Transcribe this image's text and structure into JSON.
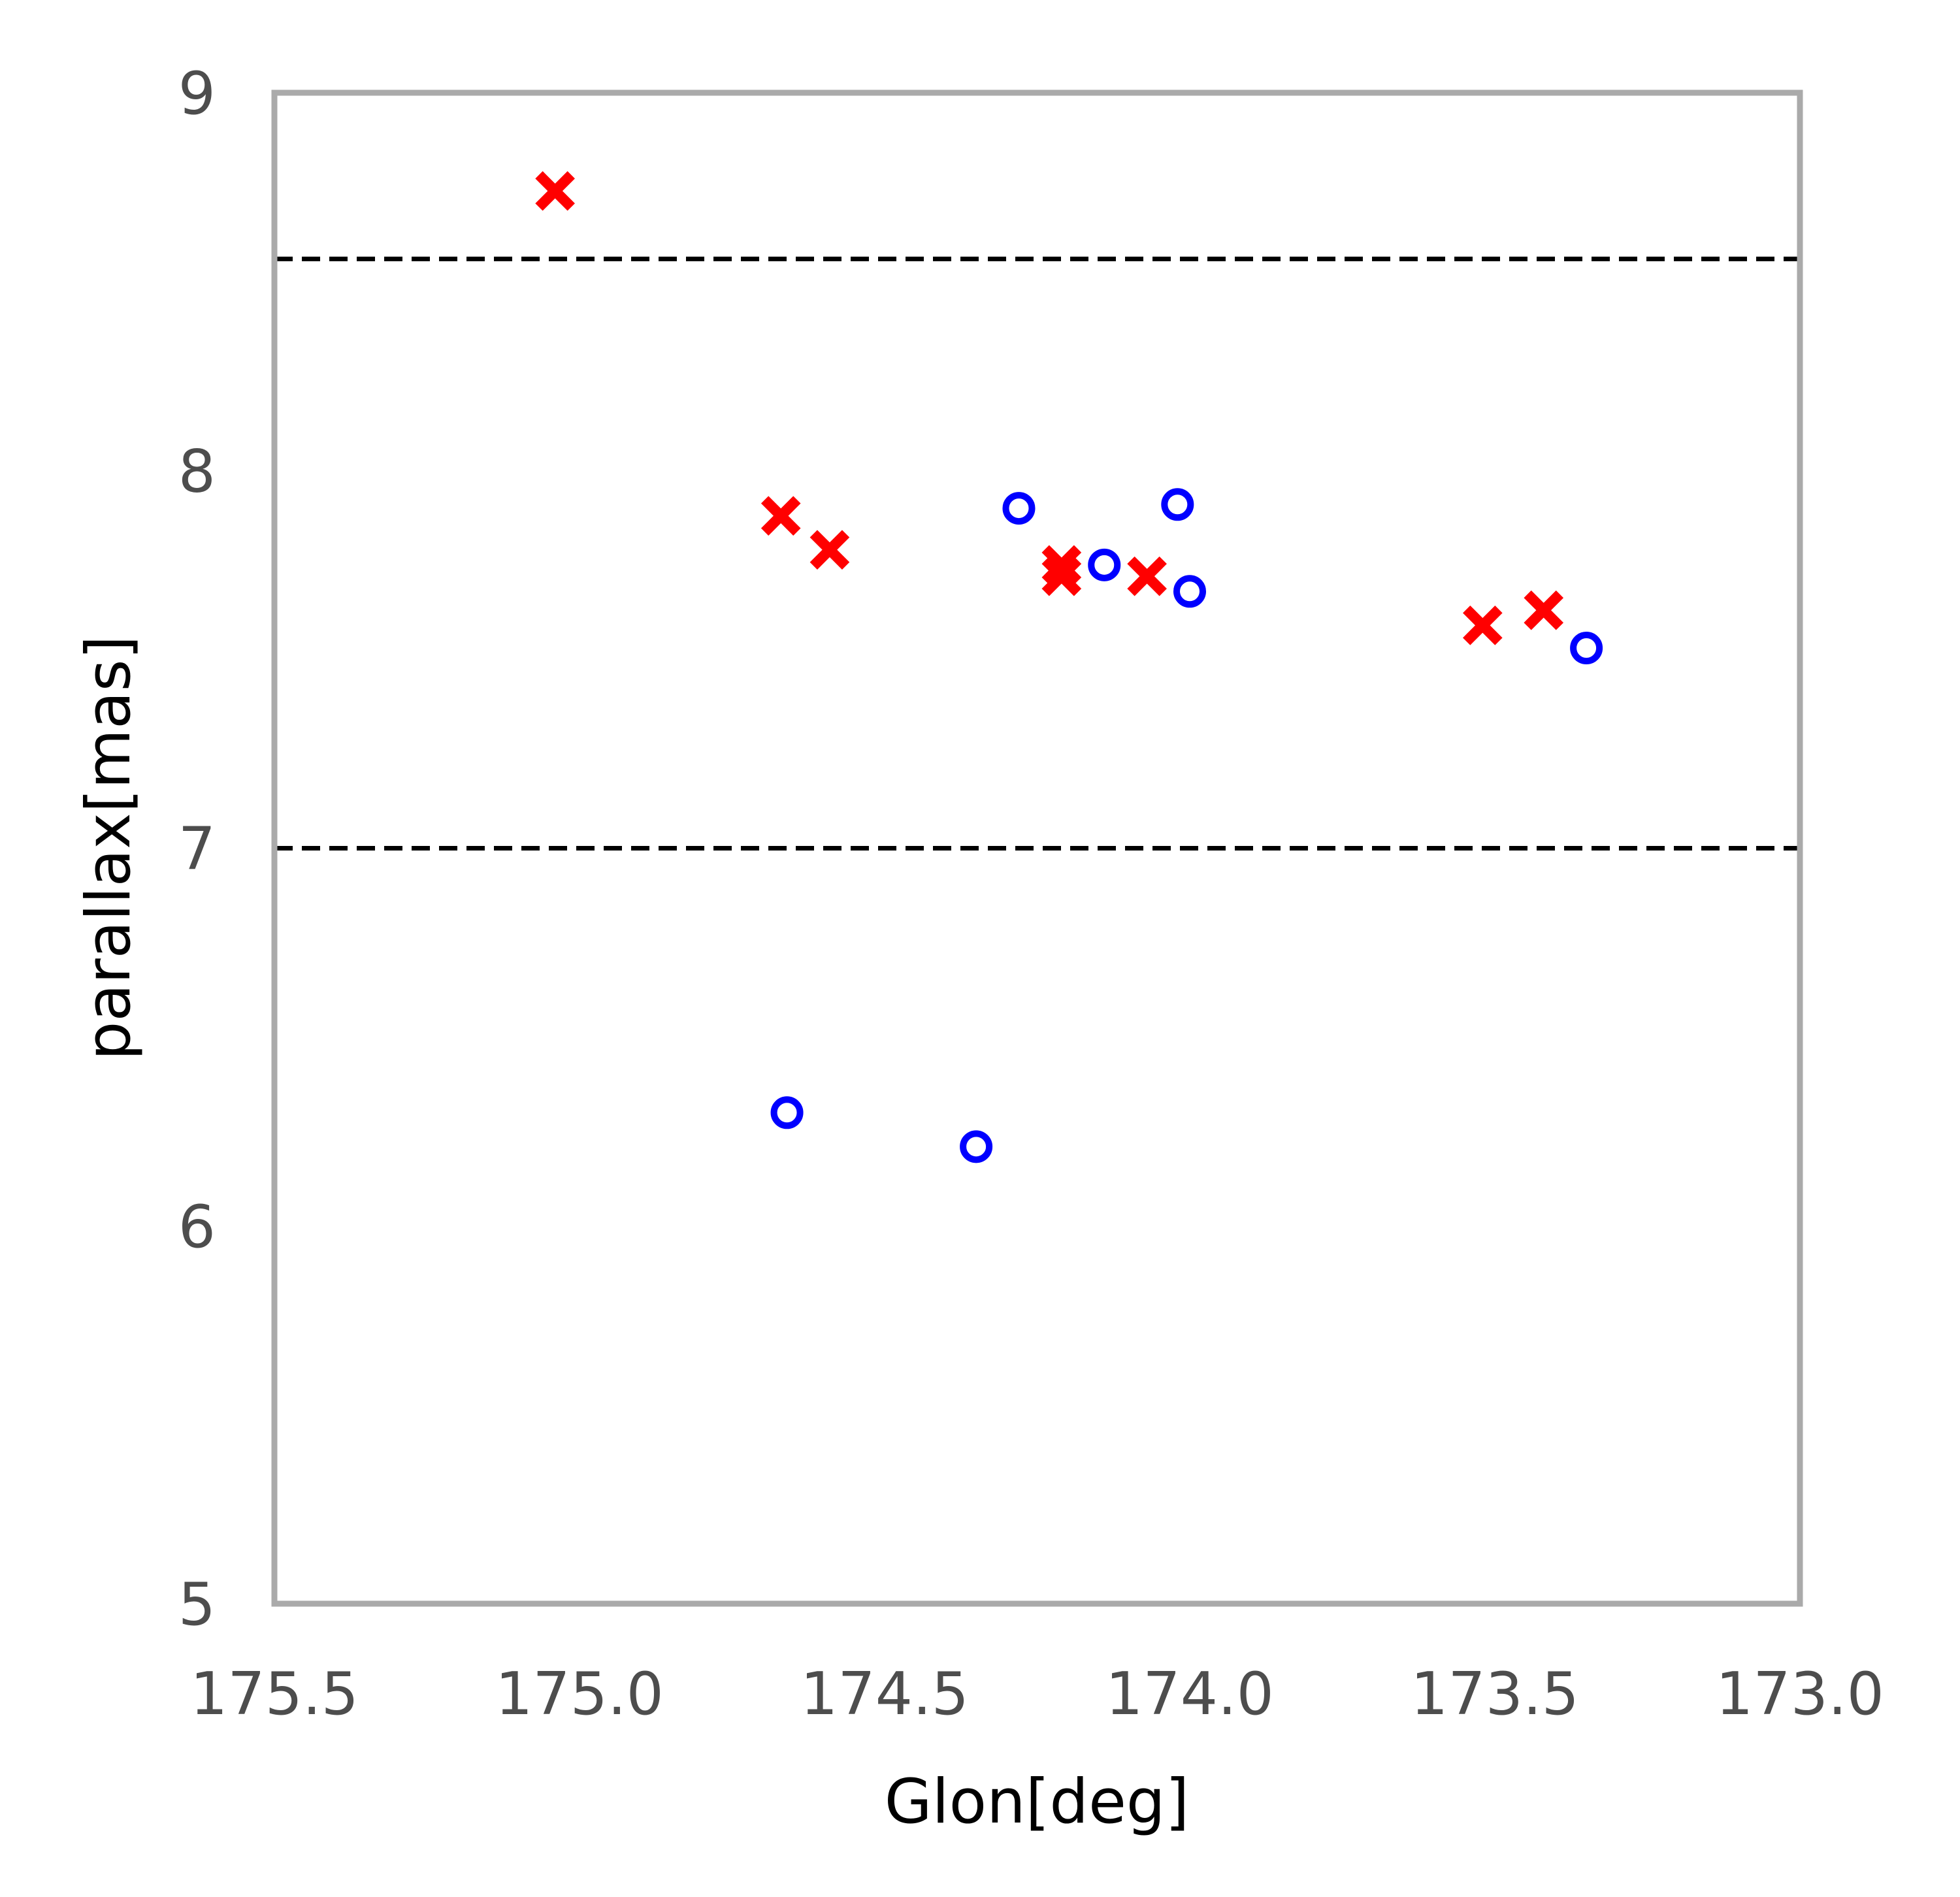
{
  "chart_data": {
    "type": "scatter",
    "xlabel": "Glon[deg]",
    "ylabel": "parallax[mas]",
    "xlim": [
      175.5,
      173.0
    ],
    "ylim": [
      5,
      9
    ],
    "x_inverted": true,
    "x_ticks": [
      "175.5",
      "175.0",
      "174.5",
      "174.0",
      "173.5",
      "173.0"
    ],
    "y_ticks": [
      "5",
      "6",
      "7",
      "8",
      "9"
    ],
    "grid": false,
    "legend": "none",
    "frame_color": "#aaaaaa",
    "reference_lines": [
      {
        "axis": "y",
        "value": 8.56,
        "style": "dashed",
        "color": "#000000"
      },
      {
        "axis": "y",
        "value": 7.0,
        "style": "dashed",
        "color": "#000000"
      }
    ],
    "series": [
      {
        "marker": "x-filled",
        "color": "#ff0000",
        "points": [
          [
            175.04,
            8.74
          ],
          [
            174.67,
            7.88
          ],
          [
            174.59,
            7.79
          ],
          [
            174.21,
            7.75
          ],
          [
            174.21,
            7.72
          ],
          [
            174.07,
            7.72
          ],
          [
            173.52,
            7.59
          ],
          [
            173.42,
            7.63
          ]
        ]
      },
      {
        "marker": "circle-open",
        "color": "#0000ff",
        "points": [
          [
            174.28,
            7.9
          ],
          [
            174.14,
            7.75
          ],
          [
            174.02,
            7.91
          ],
          [
            174.0,
            7.68
          ],
          [
            173.35,
            7.53
          ],
          [
            174.66,
            6.3
          ],
          [
            174.35,
            6.21
          ]
        ]
      }
    ]
  }
}
